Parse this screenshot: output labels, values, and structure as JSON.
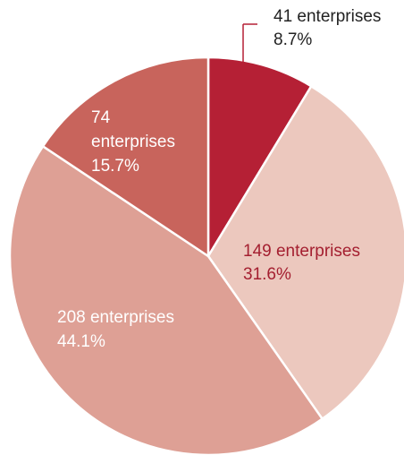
{
  "chart_data": {
    "type": "pie",
    "slices": [
      {
        "count": 41,
        "percent": 8.7,
        "line1": "41 enterprises",
        "line2": "8.7%",
        "color": "#b52035",
        "text_color": "#222222"
      },
      {
        "count": 149,
        "percent": 31.6,
        "line1": "149 enterprises",
        "line2": "31.6%",
        "color": "#ecc8be",
        "text_color": "#a41f30"
      },
      {
        "count": 208,
        "percent": 44.1,
        "line1": "208 enterprises",
        "line2": "44.1%",
        "color": "#dea095",
        "text_color": "#ffffff"
      },
      {
        "count": 74,
        "percent": 15.7,
        "line1": "74",
        "line1b": "enterprises",
        "line2": "15.7%",
        "color": "#c8645c",
        "text_color": "#ffffff"
      }
    ],
    "start_angle": "12 o'clock",
    "direction": "clockwise",
    "legend": "none"
  }
}
